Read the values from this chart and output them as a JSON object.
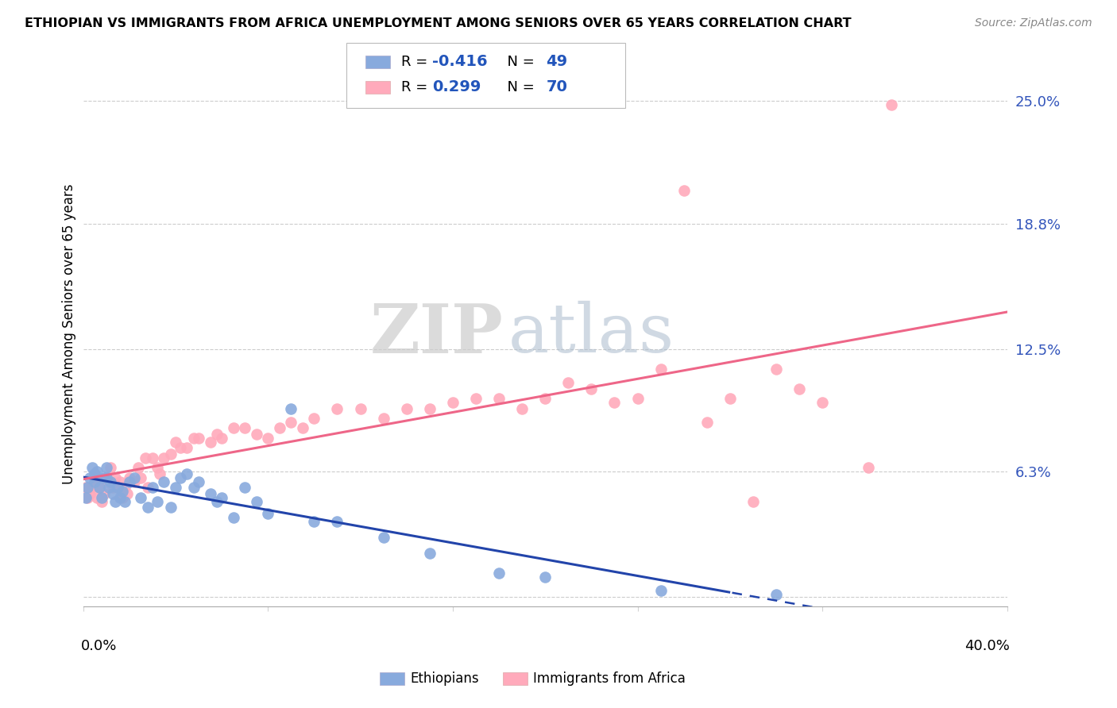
{
  "title": "ETHIOPIAN VS IMMIGRANTS FROM AFRICA UNEMPLOYMENT AMONG SENIORS OVER 65 YEARS CORRELATION CHART",
  "source": "Source: ZipAtlas.com",
  "ylabel": "Unemployment Among Seniors over 65 years",
  "xmin": 0.0,
  "xmax": 0.4,
  "ymin": -0.005,
  "ymax": 0.27,
  "ytick_vals": [
    0.0,
    0.063,
    0.125,
    0.188,
    0.25
  ],
  "ytick_labels": [
    "",
    "6.3%",
    "12.5%",
    "18.8%",
    "25.0%"
  ],
  "legend_R_eth": "-0.416",
  "legend_N_eth": "49",
  "legend_R_afr": "0.299",
  "legend_N_afr": "70",
  "blue_color": "#88AADD",
  "pink_color": "#FFAABB",
  "trend_blue_color": "#2244AA",
  "trend_pink_color": "#EE6688",
  "watermark_ZIP": "ZIP",
  "watermark_atlas": "atlas",
  "eth_x": [
    0.001,
    0.002,
    0.003,
    0.004,
    0.005,
    0.005,
    0.006,
    0.007,
    0.008,
    0.009,
    0.01,
    0.01,
    0.011,
    0.012,
    0.013,
    0.014,
    0.015,
    0.016,
    0.017,
    0.018,
    0.02,
    0.022,
    0.025,
    0.028,
    0.03,
    0.032,
    0.035,
    0.038,
    0.04,
    0.042,
    0.045,
    0.048,
    0.05,
    0.055,
    0.058,
    0.06,
    0.065,
    0.07,
    0.075,
    0.08,
    0.09,
    0.1,
    0.11,
    0.13,
    0.15,
    0.18,
    0.2,
    0.25,
    0.3
  ],
  "eth_y": [
    0.05,
    0.055,
    0.06,
    0.065,
    0.058,
    0.062,
    0.063,
    0.055,
    0.05,
    0.06,
    0.065,
    0.06,
    0.055,
    0.058,
    0.052,
    0.048,
    0.055,
    0.05,
    0.053,
    0.048,
    0.058,
    0.06,
    0.05,
    0.045,
    0.055,
    0.048,
    0.058,
    0.045,
    0.055,
    0.06,
    0.062,
    0.055,
    0.058,
    0.052,
    0.048,
    0.05,
    0.04,
    0.055,
    0.048,
    0.042,
    0.095,
    0.038,
    0.038,
    0.03,
    0.022,
    0.012,
    0.01,
    0.003,
    0.001
  ],
  "afr_x": [
    0.001,
    0.002,
    0.003,
    0.004,
    0.005,
    0.006,
    0.007,
    0.008,
    0.009,
    0.01,
    0.01,
    0.012,
    0.013,
    0.014,
    0.015,
    0.016,
    0.017,
    0.018,
    0.019,
    0.02,
    0.022,
    0.024,
    0.025,
    0.027,
    0.028,
    0.03,
    0.032,
    0.033,
    0.035,
    0.038,
    0.04,
    0.042,
    0.045,
    0.048,
    0.05,
    0.055,
    0.058,
    0.06,
    0.065,
    0.07,
    0.075,
    0.08,
    0.085,
    0.09,
    0.095,
    0.1,
    0.11,
    0.12,
    0.13,
    0.14,
    0.15,
    0.16,
    0.17,
    0.18,
    0.19,
    0.2,
    0.21,
    0.22,
    0.23,
    0.24,
    0.25,
    0.26,
    0.27,
    0.28,
    0.29,
    0.3,
    0.31,
    0.32,
    0.34,
    0.35
  ],
  "afr_y": [
    0.055,
    0.05,
    0.052,
    0.055,
    0.06,
    0.05,
    0.055,
    0.048,
    0.052,
    0.058,
    0.06,
    0.065,
    0.055,
    0.06,
    0.055,
    0.058,
    0.05,
    0.055,
    0.052,
    0.06,
    0.058,
    0.065,
    0.06,
    0.07,
    0.055,
    0.07,
    0.065,
    0.062,
    0.07,
    0.072,
    0.078,
    0.075,
    0.075,
    0.08,
    0.08,
    0.078,
    0.082,
    0.08,
    0.085,
    0.085,
    0.082,
    0.08,
    0.085,
    0.088,
    0.085,
    0.09,
    0.095,
    0.095,
    0.09,
    0.095,
    0.095,
    0.098,
    0.1,
    0.1,
    0.095,
    0.1,
    0.108,
    0.105,
    0.098,
    0.1,
    0.115,
    0.205,
    0.088,
    0.1,
    0.048,
    0.115,
    0.105,
    0.098,
    0.065,
    0.248
  ]
}
